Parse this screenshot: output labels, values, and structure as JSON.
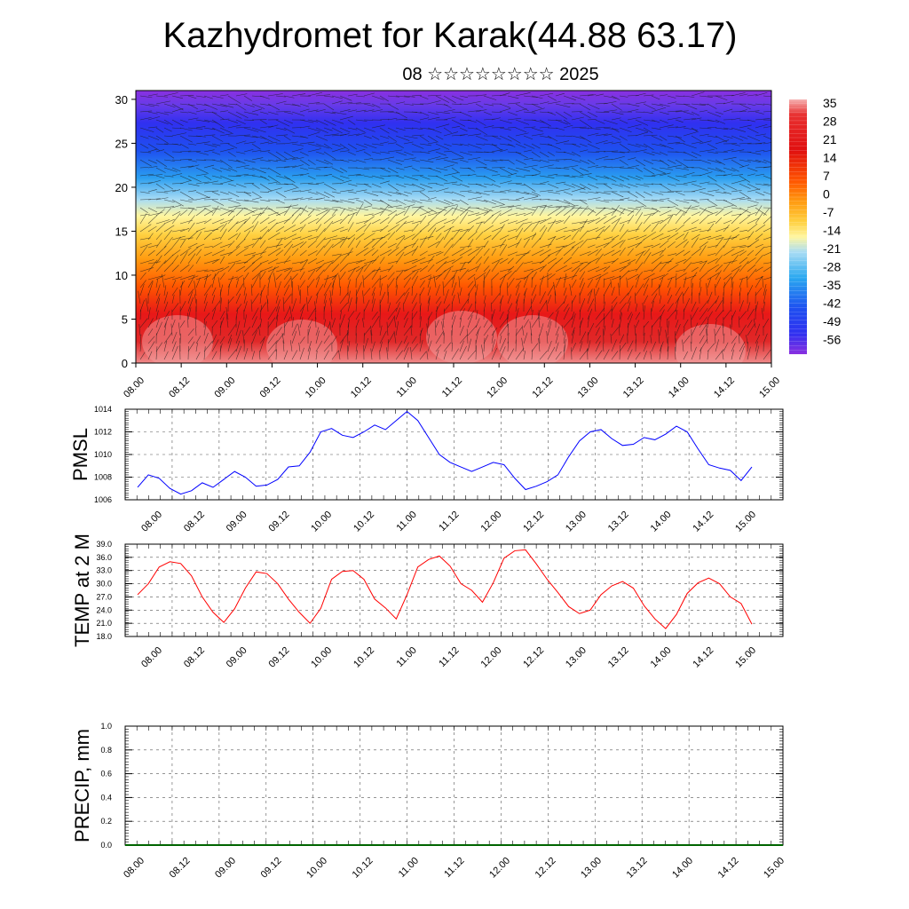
{
  "title": "Kazhydromet for Karak(44.88 63.17)",
  "subtitle": "08 ☆☆☆☆☆☆☆☆ 2025",
  "chart_data": [
    {
      "type": "heatmap",
      "title": "",
      "x_ticks": [
        "08.00",
        "08.12",
        "09.00",
        "09.12",
        "10.00",
        "10.12",
        "11.00",
        "11.12",
        "12.00",
        "12.12",
        "13.00",
        "13.12",
        "14.00",
        "14.12",
        "15.00"
      ],
      "y_ticks": [
        "0",
        "5",
        "10",
        "15",
        "20",
        "25",
        "30"
      ],
      "ylim": [
        0,
        31
      ],
      "colorbar_labels": [
        "35",
        "28",
        "21",
        "14",
        "7",
        "0",
        "-7",
        "-14",
        "-21",
        "-28",
        "-35",
        "-42",
        "-49",
        "-56"
      ],
      "colorbar_colors": [
        "#f3a0a0",
        "#e02020",
        "#ff6a00",
        "#ffb000",
        "#fff070",
        "#8ad4f0",
        "#1a8ce8",
        "#1a3cf0",
        "#6a2ad8"
      ],
      "band_colors": {
        "top": "#7a2ad8",
        "blue": "#2040f0",
        "light_blue": "#7cc8f0",
        "yellow": "#fff27a",
        "orange": "#ff9a10",
        "red": "#e81818",
        "bottom": "#f08080"
      },
      "note_overlay": "wind barbs"
    },
    {
      "type": "line",
      "ylabel": "PMSL",
      "ylim": [
        1006,
        1014
      ],
      "y_ticks": [
        "1006",
        "1008",
        "1010",
        "1012",
        "1014"
      ],
      "x_ticks": [
        "08.00",
        "08.12",
        "09.00",
        "09.12",
        "10.00",
        "10.12",
        "11.00",
        "11.12",
        "12.00",
        "12.12",
        "13.00",
        "13.12",
        "14.00",
        "14.12",
        "15.00"
      ],
      "color": "#0000ff",
      "values": [
        1007.1,
        1008.2,
        1007.9,
        1007.0,
        1006.5,
        1006.8,
        1007.5,
        1007.1,
        1007.8,
        1008.5,
        1008.0,
        1007.2,
        1007.3,
        1007.8,
        1008.9,
        1009.0,
        1010.2,
        1012.0,
        1012.3,
        1011.7,
        1011.5,
        1012.0,
        1012.6,
        1012.2,
        1013.0,
        1013.8,
        1013.0,
        1011.5,
        1010.0,
        1009.3,
        1008.9,
        1008.5,
        1008.9,
        1009.3,
        1009.1,
        1007.9,
        1006.9,
        1007.2,
        1007.6,
        1008.2,
        1009.8,
        1011.2,
        1012.0,
        1012.2,
        1011.4,
        1010.8,
        1010.9,
        1011.5,
        1011.3,
        1011.8,
        1012.5,
        1012.0,
        1010.5,
        1009.1,
        1008.8,
        1008.6,
        1007.7,
        1008.9
      ]
    },
    {
      "type": "line",
      "ylabel": "TEMP at 2 M",
      "ylim": [
        18,
        39
      ],
      "y_ticks": [
        "18.0",
        "21.0",
        "24.0",
        "27.0",
        "30.0",
        "33.0",
        "36.0",
        "39.0"
      ],
      "x_ticks": [
        "08.00",
        "08.12",
        "09.00",
        "09.12",
        "10.00",
        "10.12",
        "11.00",
        "11.12",
        "12.00",
        "12.12",
        "13.00",
        "13.12",
        "14.00",
        "14.12",
        "15.00"
      ],
      "color": "#ff0000",
      "values": [
        27.5,
        30.0,
        33.8,
        35.0,
        34.6,
        31.8,
        27.0,
        23.5,
        21.2,
        24.3,
        29.0,
        32.7,
        32.3,
        30.0,
        26.5,
        23.5,
        21.0,
        24.4,
        31.0,
        32.8,
        33.0,
        31.0,
        26.5,
        24.5,
        22.0,
        27.5,
        33.8,
        35.5,
        36.3,
        34.0,
        30.0,
        28.5,
        25.8,
        30.2,
        35.8,
        37.5,
        37.7,
        34.5,
        31.0,
        28.0,
        24.8,
        23.2,
        24.0,
        27.5,
        29.5,
        30.5,
        29.0,
        25.0,
        22.0,
        19.8,
        23.0,
        27.8,
        30.2,
        31.3,
        30.0,
        27.0,
        25.5,
        20.8
      ]
    },
    {
      "type": "bar",
      "ylabel": "PRECIP, mm",
      "ylim": [
        0,
        1
      ],
      "y_ticks": [
        "0.0",
        "0.2",
        "0.4",
        "0.6",
        "0.8",
        "1.0"
      ],
      "x_ticks": [
        "08.00",
        "08.12",
        "09.00",
        "09.12",
        "10.00",
        "10.12",
        "11.00",
        "11.12",
        "12.00",
        "12.12",
        "13.00",
        "13.12",
        "14.00",
        "14.12",
        "15.00"
      ],
      "color": "#006400",
      "values": [
        0,
        0,
        0,
        0,
        0,
        0,
        0,
        0,
        0,
        0,
        0,
        0,
        0,
        0,
        0,
        0,
        0,
        0,
        0,
        0,
        0,
        0,
        0,
        0,
        0,
        0,
        0,
        0,
        0,
        0,
        0,
        0,
        0,
        0,
        0,
        0,
        0,
        0,
        0,
        0,
        0,
        0,
        0,
        0,
        0,
        0,
        0,
        0,
        0,
        0,
        0,
        0,
        0,
        0,
        0,
        0,
        0,
        0
      ]
    }
  ]
}
